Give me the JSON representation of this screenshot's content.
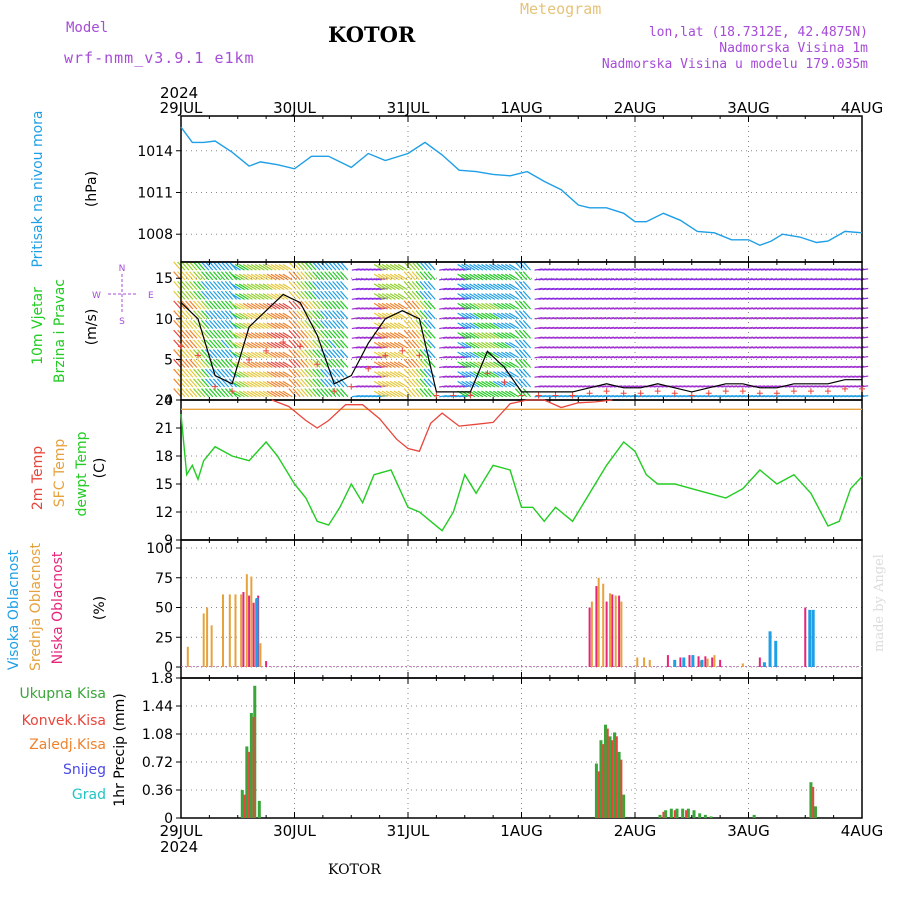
{
  "header": {
    "model_label": "Model",
    "model_name": "wrf-nmm_v3.9.1 e1km",
    "title": "KOTOR",
    "meteogram": "Meteogram",
    "lonlat": "lon,lat (18.7312E, 42.4875N)",
    "elevation": "Nadmorska Visina 1m",
    "model_elevation": "Nadmorska Visina u modelu 179.035m",
    "year": "2024",
    "footer": "KOTOR",
    "credit": "made by Angel"
  },
  "colors": {
    "pressure": "#1e9fe6",
    "temp2m": "#e8463c",
    "sfc": "#e6a23c",
    "dewpt": "#22cc22",
    "label_purple": "#a64cd6",
    "label_gold": "#e6c37a",
    "high_cloud": "#1e9fe6",
    "mid_cloud": "#e6a23c",
    "low_cloud": "#e6257a",
    "precip_total": "#3aa63a",
    "precip_conv": "#e8463c",
    "precip_frz": "#f0822c",
    "snow": "#4a4ae6",
    "graupel": "#22c4c4"
  },
  "x_axis": {
    "labels": [
      "29JUL",
      "30JUL",
      "31JUL",
      "1AUG",
      "2AUG",
      "3AUG",
      "4AUG"
    ],
    "days": 6
  },
  "chart_data": [
    {
      "type": "line",
      "id": "pressure",
      "ylabel_line1": "Pritisak na nivou mora",
      "ylabel_line2": "(hPa)",
      "ylim": [
        1006,
        1016.5
      ],
      "yticks": [
        1008,
        1011,
        1014
      ],
      "series": [
        {
          "name": "Pritisak na nivou mora",
          "x": [
            0,
            0.1,
            0.2,
            0.3,
            0.45,
            0.6,
            0.7,
            0.85,
            1.0,
            1.15,
            1.3,
            1.5,
            1.65,
            1.8,
            2.0,
            2.15,
            2.3,
            2.45,
            2.6,
            2.75,
            2.9,
            3.05,
            3.2,
            3.35,
            3.5,
            3.6,
            3.75,
            3.9,
            4.0,
            4.1,
            4.25,
            4.4,
            4.55,
            4.7,
            4.85,
            5.0,
            5.1,
            5.2,
            5.3,
            5.45,
            5.6,
            5.7,
            5.85,
            6.0
          ],
          "values": [
            1015.7,
            1014.6,
            1014.6,
            1014.7,
            1013.9,
            1012.9,
            1013.2,
            1013.0,
            1012.7,
            1013.6,
            1013.6,
            1012.8,
            1013.8,
            1013.3,
            1013.8,
            1014.6,
            1013.7,
            1012.6,
            1012.5,
            1012.3,
            1012.2,
            1012.5,
            1011.8,
            1011.2,
            1010.1,
            1009.9,
            1009.9,
            1009.5,
            1008.9,
            1008.9,
            1009.5,
            1009.0,
            1008.2,
            1008.1,
            1007.6,
            1007.6,
            1007.2,
            1007.5,
            1008.0,
            1007.8,
            1007.4,
            1007.5,
            1008.2,
            1008.1
          ]
        }
      ]
    },
    {
      "type": "line",
      "id": "wind",
      "ylabel_line1": "10m Vjetar",
      "ylabel_line2": "Brzina i Pravac",
      "ylabel_line3": "(m/s)",
      "compass": [
        "N",
        "W",
        "E",
        "S"
      ],
      "ylim": [
        0,
        17
      ],
      "yticks": [
        0,
        5,
        10,
        15
      ],
      "series": [
        {
          "name": "speed",
          "x": [
            0,
            0.15,
            0.3,
            0.45,
            0.6,
            0.75,
            0.9,
            1.05,
            1.2,
            1.35,
            1.5,
            1.65,
            1.8,
            1.95,
            2.1,
            2.25,
            2.4,
            2.55,
            2.7,
            2.85,
            3.0,
            3.15,
            3.3,
            3.45,
            3.6,
            3.75,
            3.9,
            4.05,
            4.2,
            4.35,
            4.5,
            4.65,
            4.8,
            4.95,
            5.1,
            5.25,
            5.4,
            5.55,
            5.7,
            5.85,
            6.0
          ],
          "values": [
            12,
            10,
            3,
            2,
            9,
            11,
            13,
            12,
            8,
            2,
            3,
            7,
            10,
            11,
            10,
            1,
            1,
            1,
            6,
            4,
            1,
            1,
            1,
            1,
            1.5,
            2,
            1.5,
            1.5,
            2,
            1.5,
            1,
            1.5,
            2,
            2,
            1.5,
            1.5,
            2,
            2,
            2,
            2.5,
            2.5
          ]
        }
      ]
    },
    {
      "type": "line",
      "id": "temperature",
      "ylabel_line1": "2m Temp",
      "ylabel_line2": "SFC Temp",
      "ylabel_line3": "dewpt Temp",
      "ylabel_line4": "(C)",
      "ylim": [
        9,
        24
      ],
      "yticks": [
        9,
        12,
        15,
        18,
        21,
        24
      ],
      "series": [
        {
          "name": "2m Temp",
          "x": [
            0.8,
            0.95,
            1.1,
            1.2,
            1.3,
            1.45,
            1.6,
            1.75,
            1.9,
            2.0,
            2.1,
            2.2,
            2.3,
            2.45,
            2.6,
            2.75,
            2.9,
            3.05,
            3.2,
            3.35,
            3.5,
            3.65,
            3.8
          ],
          "values": [
            24,
            23.3,
            21.8,
            21.0,
            21.8,
            23.5,
            23.5,
            22.0,
            19.8,
            18.8,
            18.5,
            21.5,
            22.6,
            21.2,
            21.4,
            21.6,
            23.6,
            24,
            24,
            23.2,
            23.7,
            23.8,
            24
          ]
        },
        {
          "name": "SFC Temp",
          "x": [
            0,
            6.0
          ],
          "values": [
            23.0,
            23.0
          ]
        },
        {
          "name": "dewpt Temp",
          "x": [
            0,
            0.05,
            0.1,
            0.15,
            0.2,
            0.3,
            0.45,
            0.6,
            0.75,
            0.85,
            1.0,
            1.1,
            1.2,
            1.3,
            1.4,
            1.5,
            1.6,
            1.7,
            1.85,
            2.0,
            2.1,
            2.2,
            2.3,
            2.4,
            2.5,
            2.6,
            2.75,
            2.9,
            3.0,
            3.1,
            3.2,
            3.3,
            3.45,
            3.6,
            3.75,
            3.9,
            4.0,
            4.1,
            4.2,
            4.35,
            4.5,
            4.65,
            4.8,
            4.95,
            5.1,
            5.25,
            5.4,
            5.55,
            5.7,
            5.8,
            5.9,
            6.0
          ],
          "values": [
            22.5,
            16,
            17,
            15.5,
            17.5,
            19,
            18,
            17.5,
            19.5,
            18,
            15,
            13.5,
            11,
            10.6,
            12.5,
            15,
            13,
            16,
            16.5,
            12.5,
            12,
            11,
            10,
            12,
            16,
            14,
            17,
            16.5,
            12.5,
            12.5,
            11,
            12.5,
            11,
            14,
            17,
            19.5,
            18.5,
            16,
            15,
            15,
            14.5,
            14,
            13.5,
            14.5,
            16.5,
            15,
            16,
            14,
            10.5,
            11,
            14.5,
            15.8
          ]
        }
      ]
    },
    {
      "type": "bar",
      "id": "clouds",
      "ylabel_line1": "Visoka Oblacnost",
      "ylabel_line2": "Srednja Oblacnost",
      "ylabel_line3": "Niska Oblacnost",
      "ylabel_line4": "(%)",
      "ylim": [
        0,
        100
      ],
      "yticks": [
        0,
        25,
        50,
        75,
        100
      ],
      "series": [
        {
          "name": "Srednja Oblacnost",
          "x": [
            0.06,
            0.2,
            0.23,
            0.27,
            0.37,
            0.43,
            0.48,
            0.53,
            0.58,
            0.62,
            0.66,
            0.7,
            3.62,
            3.68,
            3.72,
            3.78,
            3.83,
            3.88,
            4.02,
            4.08,
            4.13,
            4.58,
            4.64,
            4.7,
            4.95
          ],
          "values": [
            17,
            45,
            50,
            35,
            61,
            61,
            61,
            61,
            78,
            76,
            57,
            20,
            55,
            75,
            70,
            62,
            60,
            55,
            8,
            8,
            6,
            5,
            7,
            10,
            3
          ]
        },
        {
          "name": "Niska Oblacnost",
          "x": [
            0.55,
            0.6,
            0.64,
            0.68,
            0.75,
            3.6,
            3.66,
            3.75,
            3.8,
            3.86,
            4.29,
            4.4,
            4.48,
            4.56,
            4.62,
            4.68,
            4.75,
            5.1,
            5.5
          ],
          "values": [
            63,
            60,
            54,
            60,
            5,
            50,
            68,
            55,
            61,
            60,
            10,
            8,
            10,
            9,
            9,
            8,
            6,
            8,
            50
          ]
        },
        {
          "name": "Visoka Oblacnost",
          "x": [
            0.67,
            4.35,
            4.43,
            4.51,
            4.59,
            5.14,
            5.19,
            5.24,
            5.54,
            5.57
          ],
          "values": [
            58,
            6,
            8,
            10,
            6,
            4,
            30,
            22,
            48,
            48
          ]
        }
      ]
    },
    {
      "type": "bar",
      "id": "precip",
      "ylabel_line1": "1hr Precip",
      "ylabel_line2": "(mm)",
      "legend": [
        "Ukupna Kisa",
        "Konvek.Kisa",
        "Zaledj.Kisa",
        "Snijeg",
        "Grad"
      ],
      "ylim": [
        0,
        1.8
      ],
      "yticks": [
        0,
        0.36,
        0.72,
        1.08,
        1.44,
        1.8
      ],
      "series": [
        {
          "name": "Ukupna Kisa",
          "x": [
            0.54,
            0.58,
            0.62,
            0.65,
            0.69,
            3.66,
            3.7,
            3.74,
            3.78,
            3.82,
            3.86,
            3.9,
            4.22,
            4.27,
            4.32,
            4.37,
            4.42,
            4.47,
            4.52,
            4.57,
            4.62,
            4.67,
            5.05,
            5.55,
            5.59
          ],
          "values": [
            0.36,
            0.92,
            1.35,
            1.7,
            0.22,
            0.7,
            1.0,
            1.2,
            1.05,
            1.1,
            0.85,
            0.3,
            0.04,
            0.1,
            0.12,
            0.12,
            0.12,
            0.12,
            0.1,
            0.06,
            0.04,
            0.02,
            0.04,
            0.46,
            0.15
          ]
        },
        {
          "name": "Konvek.Kisa",
          "x": [
            0.56,
            0.6,
            0.64,
            3.68,
            3.72,
            3.76,
            3.8,
            3.84,
            3.88,
            4.25,
            4.35,
            4.45,
            5.57
          ],
          "values": [
            0.3,
            0.85,
            1.3,
            0.6,
            0.95,
            1.15,
            1.0,
            1.05,
            0.75,
            0.08,
            0.1,
            0.1,
            0.4
          ]
        }
      ]
    }
  ]
}
